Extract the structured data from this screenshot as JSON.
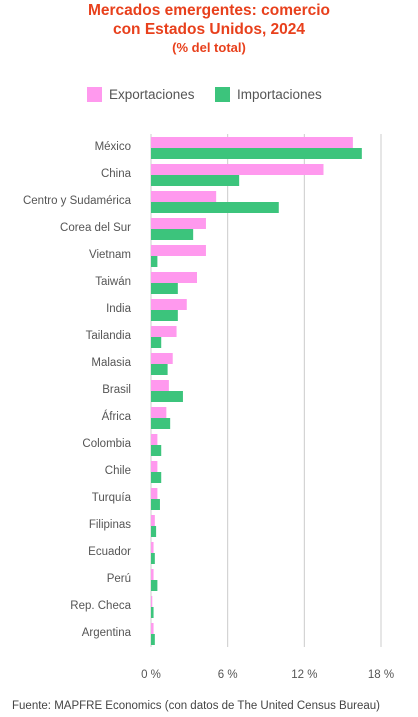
{
  "title": {
    "line1": "Mercados emergentes: comercio",
    "line2": "con Estados Unidos, 2024",
    "unit": "(% del total)"
  },
  "colors": {
    "title": "#e8401c",
    "exports": "#ff99ee",
    "imports": "#3cc47c",
    "grid": "#cccccc",
    "text": "#555555"
  },
  "source": "Fuente: MAPFRE Economics (con datos de The United Census Bureau)",
  "chart_data": {
    "type": "bar",
    "orientation": "horizontal",
    "title": "Mercados emergentes: comercio con Estados Unidos, 2024",
    "subtitle": "(% del total)",
    "categories": [
      "México",
      "China",
      "Centro y Sudamérica",
      "Corea del Sur",
      "Vietnam",
      "Taiwán",
      "India",
      "Tailandia",
      "Malasia",
      "Brasil",
      "África",
      "Colombia",
      "Chile",
      "Turquía",
      "Filipinas",
      "Ecuador",
      "Perú",
      "Rep. Checa",
      "Argentina"
    ],
    "series": [
      {
        "name": "Exportaciones",
        "values": [
          15.8,
          13.5,
          5.1,
          4.3,
          4.3,
          3.6,
          2.8,
          2.0,
          1.7,
          1.4,
          1.2,
          0.5,
          0.5,
          0.5,
          0.3,
          0.2,
          0.2,
          0.1,
          0.2
        ]
      },
      {
        "name": "Importaciones",
        "values": [
          16.5,
          6.9,
          10.0,
          3.3,
          0.5,
          2.1,
          2.1,
          0.8,
          1.3,
          2.5,
          1.5,
          0.8,
          0.8,
          0.7,
          0.4,
          0.3,
          0.5,
          0.2,
          0.3
        ]
      }
    ],
    "xlim": [
      0,
      18
    ],
    "xticks": [
      0,
      6,
      12,
      18
    ],
    "xtick_labels": [
      "0 %",
      "6 %",
      "12 %",
      "18 %"
    ],
    "grid": "vertical",
    "legend_position": "top"
  }
}
